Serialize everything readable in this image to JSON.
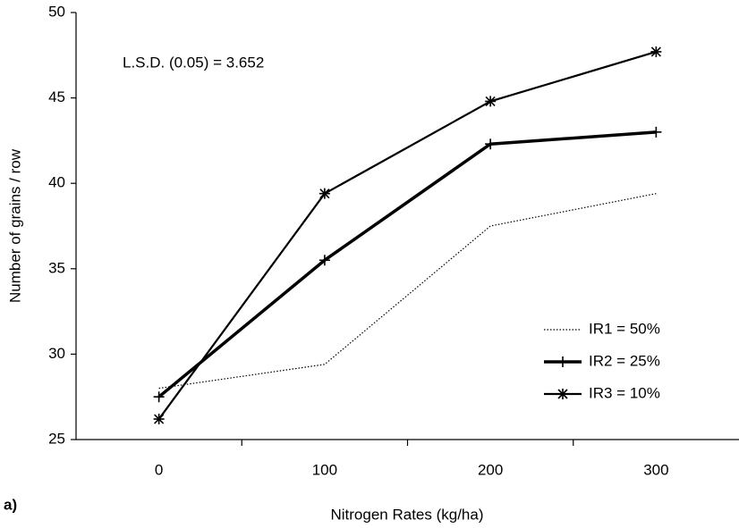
{
  "chart_data": {
    "type": "line",
    "xlabel": "Nitrogen Rates (kg/ha)",
    "ylabel": "Number of grains / row",
    "annotations": [
      "L.S.D. (0.05) = 3.652",
      "a)"
    ],
    "categories": [
      "0",
      "100",
      "200",
      "300"
    ],
    "series": [
      {
        "name": "IR1 = 50%",
        "color": "#000000",
        "style": "dotted",
        "marker": "none",
        "values": [
          28.0,
          29.4,
          37.5,
          39.4
        ]
      },
      {
        "name": "IR2 = 25%",
        "color": "#000000",
        "style": "thick",
        "marker": "plus",
        "values": [
          27.5,
          35.5,
          42.3,
          43.0
        ]
      },
      {
        "name": "IR3 = 10%",
        "color": "#000000",
        "style": "solid",
        "marker": "star",
        "values": [
          26.2,
          39.4,
          44.8,
          47.7
        ]
      }
    ],
    "ylim": [
      25,
      50
    ],
    "yticks": [
      25,
      30,
      35,
      40,
      45,
      50
    ],
    "grid": false,
    "legend": "lower right"
  }
}
